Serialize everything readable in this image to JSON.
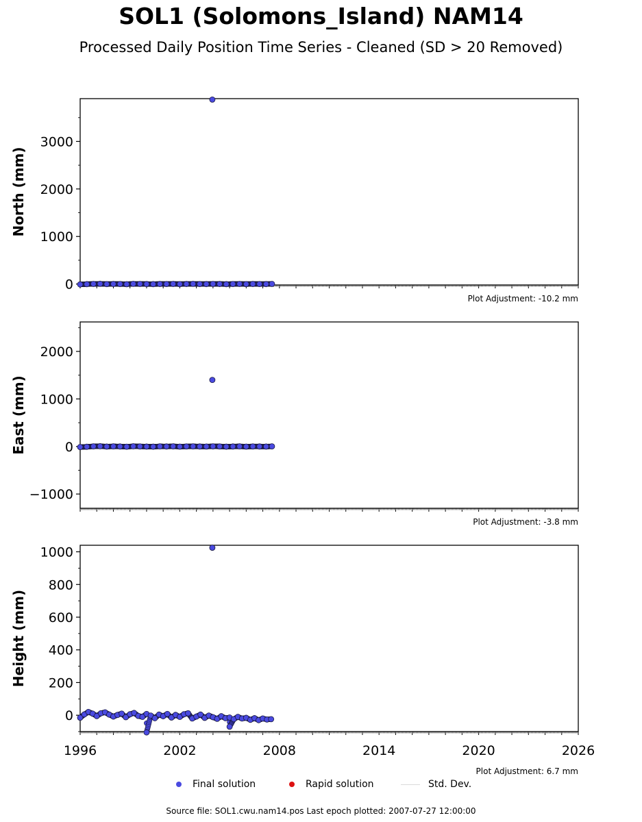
{
  "title": "SOL1 (Solomons_Island) NAM14",
  "subtitle": "Processed Daily Position Time Series - Cleaned (SD > 20 Removed)",
  "source_note": "Source file: SOL1.cwu.nam14.pos  Last epoch plotted: 2007-07-27 12:00:00",
  "legend": {
    "final": "Final solution",
    "rapid": "Rapid solution",
    "std": "Std. Dev."
  },
  "colors": {
    "final": "#4a4ae0",
    "rapid": "#dd1111",
    "std": "#d9d9d9",
    "edge": "#1a1a40"
  },
  "chart_data": [
    {
      "type": "scatter",
      "ylabel": "North (mm)",
      "adjustment": "Plot Adjustment: -10.2 mm",
      "xlim": [
        1996,
        2026
      ],
      "ylim": [
        -20,
        3900
      ],
      "yticks": [
        0,
        1000,
        2000,
        3000
      ],
      "ytick_labels": [
        "0",
        "1000",
        "2000",
        "3000"
      ],
      "series": [
        {
          "name": "Final solution",
          "x": [
            1996.0,
            1996.4,
            1996.8,
            1997.2,
            1997.6,
            1998.0,
            1998.4,
            1998.8,
            1999.2,
            1999.6,
            2000.0,
            2000.4,
            2000.8,
            2001.2,
            2001.6,
            2002.0,
            2002.4,
            2002.8,
            2003.2,
            2003.6,
            2004.0,
            2004.4,
            2004.8,
            2005.2,
            2005.6,
            2006.0,
            2006.4,
            2006.8,
            2007.2,
            2007.55,
            2003.96
          ],
          "y": [
            -8,
            -3,
            2,
            4,
            -2,
            1,
            0,
            -4,
            3,
            2,
            -1,
            -3,
            1,
            0,
            2,
            -2,
            1,
            3,
            0,
            -1,
            2,
            1,
            -3,
            0,
            2,
            -2,
            1,
            0,
            -1,
            2,
            3880
          ]
        }
      ]
    },
    {
      "type": "scatter",
      "ylabel": "East (mm)",
      "adjustment": "Plot Adjustment: -3.8 mm",
      "xlim": [
        1996,
        2026
      ],
      "ylim": [
        -1300,
        2620
      ],
      "yticks": [
        -1000,
        0,
        1000,
        2000
      ],
      "ytick_labels": [
        "−1000",
        "0",
        "1000",
        "2000"
      ],
      "series": [
        {
          "name": "Final solution",
          "x": [
            1996.0,
            1996.4,
            1996.8,
            1997.2,
            1997.6,
            1998.0,
            1998.4,
            1998.8,
            1999.2,
            1999.6,
            2000.0,
            2000.4,
            2000.8,
            2001.2,
            2001.6,
            2002.0,
            2002.4,
            2002.8,
            2003.2,
            2003.6,
            2004.0,
            2004.4,
            2004.8,
            2005.2,
            2005.6,
            2006.0,
            2006.4,
            2006.8,
            2007.2,
            2007.55,
            2003.96
          ],
          "y": [
            -12,
            -6,
            3,
            5,
            -2,
            2,
            0,
            -5,
            4,
            1,
            -2,
            -4,
            2,
            0,
            3,
            -3,
            1,
            2,
            0,
            -1,
            3,
            1,
            -4,
            0,
            2,
            -3,
            1,
            0,
            -2,
            2,
            1400
          ]
        }
      ]
    },
    {
      "type": "scatter",
      "ylabel": "Height (mm)",
      "adjustment": "Plot Adjustment: 6.7 mm",
      "xlim": [
        1996,
        2026
      ],
      "ylim": [
        -100,
        1040
      ],
      "yticks": [
        0,
        200,
        400,
        600,
        800,
        1000
      ],
      "ytick_labels": [
        "0",
        "200",
        "400",
        "600",
        "800",
        "1000"
      ],
      "xticks": [
        1996,
        2002,
        2008,
        2014,
        2020,
        2026
      ],
      "xtick_labels": [
        "1996",
        "2002",
        "2008",
        "2014",
        "2020",
        "2026"
      ],
      "series": [
        {
          "name": "Final solution",
          "x": [
            1996.0,
            1996.25,
            1996.5,
            1996.75,
            1997.0,
            1997.25,
            1997.5,
            1997.75,
            1998.0,
            1998.25,
            1998.5,
            1998.75,
            1999.0,
            1999.25,
            1999.5,
            1999.75,
            2000.0,
            2000.25,
            2000.5,
            2000.75,
            2001.0,
            2001.25,
            2001.5,
            2001.75,
            2002.0,
            2002.25,
            2002.5,
            2002.75,
            2003.0,
            2003.25,
            2003.5,
            2003.75,
            2004.0,
            2004.25,
            2004.5,
            2004.75,
            2005.0,
            2005.25,
            2005.5,
            2005.75,
            2006.0,
            2006.25,
            2006.5,
            2006.75,
            2007.0,
            2007.25,
            2007.5,
            2000.0,
            2005.0,
            2003.96
          ],
          "y": [
            -15,
            5,
            20,
            10,
            -5,
            12,
            18,
            4,
            -8,
            2,
            10,
            -12,
            6,
            14,
            -4,
            -10,
            8,
            -2,
            -18,
            4,
            -6,
            8,
            -14,
            2,
            -10,
            6,
            12,
            -20,
            -8,
            4,
            -16,
            -2,
            -12,
            -22,
            -6,
            -18,
            -14,
            -24,
            -10,
            -20,
            -16,
            -28,
            -18,
            -30,
            -20,
            -26,
            -24,
            -105,
            -70,
            1025
          ]
        }
      ]
    }
  ]
}
